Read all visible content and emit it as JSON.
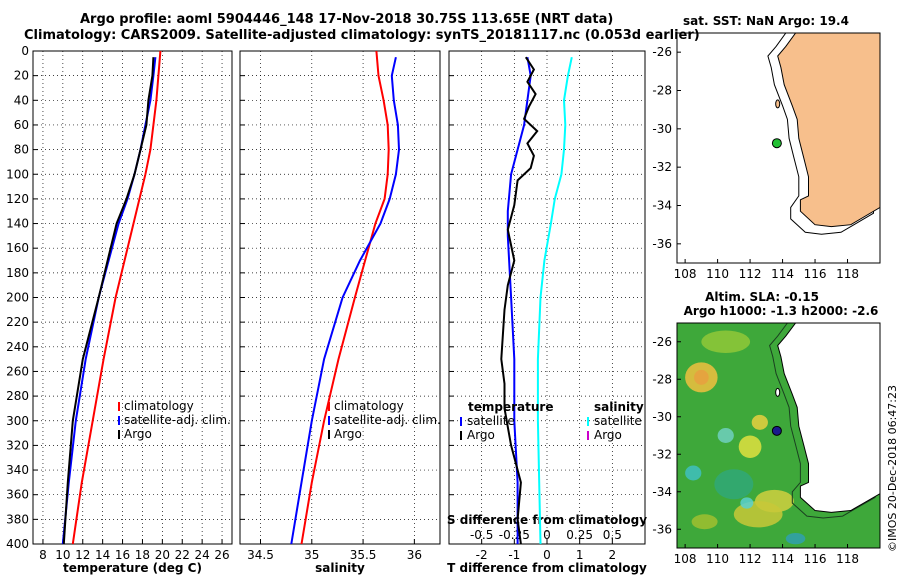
{
  "header": {
    "line1": "Argo profile: aoml 5904446_148 17-Nov-2018 30.75S 113.65E (NRT data)",
    "line2": "Climatology: CARS2009. Satellite-adjusted climatology: synTS_20181117.nc (0.053d earlier)"
  },
  "colors": {
    "climatology": "#ff0000",
    "satellite": "#0000ff",
    "argo": "#000000",
    "salinity_sat": "#00ffff",
    "salinity_argo": "#cc00cc",
    "land": "#f7bf8c",
    "marker_sst": "#22c033",
    "marker_sla": "#1a1a8c"
  },
  "chart_data": [
    {
      "type": "line",
      "name": "temperature",
      "xlabel": "temperature (deg C)",
      "ylabel": "depth",
      "xlim": [
        7,
        27
      ],
      "ylim": [
        0,
        400
      ],
      "xticks": [
        8,
        10,
        12,
        14,
        16,
        18,
        20,
        22,
        24,
        26
      ],
      "yticks": [
        0,
        20,
        40,
        60,
        80,
        100,
        120,
        140,
        160,
        180,
        200,
        220,
        240,
        260,
        280,
        300,
        320,
        340,
        360,
        380,
        400
      ],
      "legend": [
        "climatology",
        "satellite-adj. clim.",
        "Argo"
      ],
      "series": [
        {
          "name": "climatology",
          "depth": [
            0,
            20,
            40,
            60,
            80,
            100,
            140,
            200,
            250,
            300,
            350,
            400
          ],
          "values": [
            19.8,
            19.6,
            19.4,
            19.1,
            18.8,
            18.3,
            17.1,
            15.3,
            14.1,
            13.0,
            11.9,
            11.0
          ]
        },
        {
          "name": "satellite-adj. clim.",
          "depth": [
            5,
            20,
            40,
            60,
            80,
            100,
            120,
            140,
            200,
            250,
            300,
            350,
            400
          ],
          "values": [
            19.3,
            19.1,
            18.8,
            18.3,
            17.8,
            17.2,
            16.5,
            15.6,
            13.6,
            12.3,
            11.3,
            10.6,
            10.0
          ]
        },
        {
          "name": "Argo",
          "depth": [
            5,
            20,
            40,
            60,
            80,
            100,
            120,
            140,
            160,
            200,
            250,
            300,
            350,
            400
          ],
          "values": [
            19.1,
            19.0,
            18.6,
            18.4,
            17.8,
            17.2,
            16.4,
            15.4,
            14.8,
            13.6,
            12.0,
            11.0,
            10.5,
            10.1
          ]
        }
      ]
    },
    {
      "type": "line",
      "name": "salinity",
      "xlabel": "salinity",
      "ylabel": "depth",
      "xlim": [
        34.3,
        36.25
      ],
      "ylim": [
        0,
        400
      ],
      "xticks": [
        34.5,
        35,
        35.5,
        36
      ],
      "xticklabels": [
        "34.5",
        "35",
        "35.5",
        "36"
      ],
      "legend": [
        "climatology",
        "satellite-adj. clim.",
        "Argo"
      ],
      "series": [
        {
          "name": "climatology",
          "depth": [
            0,
            20,
            40,
            60,
            80,
            100,
            120,
            140,
            170,
            200,
            250,
            300,
            350,
            400
          ],
          "values": [
            35.63,
            35.65,
            35.7,
            35.74,
            35.75,
            35.74,
            35.71,
            35.62,
            35.52,
            35.42,
            35.26,
            35.12,
            35.0,
            34.9
          ]
        },
        {
          "name": "satellite-adj. clim.",
          "depth": [
            5,
            20,
            40,
            60,
            80,
            100,
            120,
            140,
            170,
            200,
            250,
            300,
            350,
            400
          ],
          "values": [
            35.82,
            35.78,
            35.8,
            35.84,
            35.85,
            35.82,
            35.76,
            35.67,
            35.47,
            35.3,
            35.12,
            35.0,
            34.9,
            34.8
          ]
        }
      ]
    },
    {
      "type": "line",
      "name": "difference",
      "xlabel": "T difference from climatology",
      "toplabel": "S difference from climatology",
      "xlim": [
        -3,
        3
      ],
      "ylim": [
        0,
        400
      ],
      "xticks": [
        -2,
        -1,
        0,
        1,
        2
      ],
      "xticklabels": [
        "-2",
        "-1",
        "0",
        "1",
        "2"
      ],
      "sticks": [
        -0.5,
        -0.25,
        0,
        0.25,
        0.5
      ],
      "stickslabels": [
        "-0.5",
        "-0.25",
        "0",
        "0.25",
        "0.5"
      ],
      "legend": {
        "temperature": [
          "satellite",
          "Argo"
        ],
        "salinity": [
          "satellite",
          "Argo"
        ],
        "temperature_title": "temperature",
        "salinity_title": "salinity"
      },
      "series": [
        {
          "name": "T satellite",
          "depth": [
            5,
            20,
            40,
            60,
            80,
            100,
            130,
            150,
            200,
            250,
            300,
            350,
            400
          ],
          "values": [
            -0.6,
            -0.5,
            -0.6,
            -0.7,
            -0.9,
            -1.1,
            -1.2,
            -1.2,
            -1.1,
            -1.0,
            -1.0,
            -0.9,
            -0.9
          ]
        },
        {
          "name": "T Argo",
          "depth": [
            5,
            15,
            25,
            35,
            45,
            55,
            65,
            75,
            85,
            95,
            105,
            125,
            145,
            170,
            190,
            210,
            250,
            270,
            290,
            320,
            350,
            380,
            400
          ],
          "values": [
            -0.65,
            -0.4,
            -0.6,
            -0.35,
            -0.55,
            -0.7,
            -0.3,
            -0.6,
            -0.4,
            -0.5,
            -0.9,
            -1.0,
            -1.2,
            -1.0,
            -1.2,
            -1.3,
            -1.4,
            -1.3,
            -1.3,
            -1.1,
            -0.8,
            -0.9,
            -0.8
          ]
        },
        {
          "name": "S satellite",
          "depth": [
            5,
            20,
            40,
            60,
            80,
            100,
            120,
            140,
            170,
            200,
            250,
            300,
            350,
            400
          ],
          "values": [
            0.19,
            0.16,
            0.13,
            0.14,
            0.13,
            0.11,
            0.06,
            0.03,
            -0.02,
            -0.05,
            -0.07,
            -0.07,
            -0.06,
            -0.05
          ]
        }
      ]
    },
    {
      "type": "map",
      "name": "sst",
      "title": "sat. SST: NaN Argo: 19.4",
      "xlim": [
        107.5,
        120
      ],
      "ylim": [
        -37,
        -25
      ],
      "xticks": [
        108,
        110,
        112,
        114,
        116,
        118
      ],
      "yticks": [
        -26,
        -28,
        -30,
        -32,
        -34,
        -36
      ],
      "float": {
        "lon": 113.65,
        "lat": -30.75
      }
    },
    {
      "type": "map",
      "name": "sla",
      "title": "Altim. SLA: -0.15",
      "subtitle": "Argo h1000: -1.3 h2000: -2.6",
      "xlim": [
        107.5,
        120
      ],
      "ylim": [
        -37,
        -25
      ],
      "xticks": [
        108,
        110,
        112,
        114,
        116,
        118
      ],
      "yticks": [
        -26,
        -28,
        -30,
        -32,
        -34,
        -36
      ],
      "float": {
        "lon": 113.65,
        "lat": -30.75
      }
    }
  ],
  "side_label": "©IMOS 20-Dec-2018 06:47:23"
}
